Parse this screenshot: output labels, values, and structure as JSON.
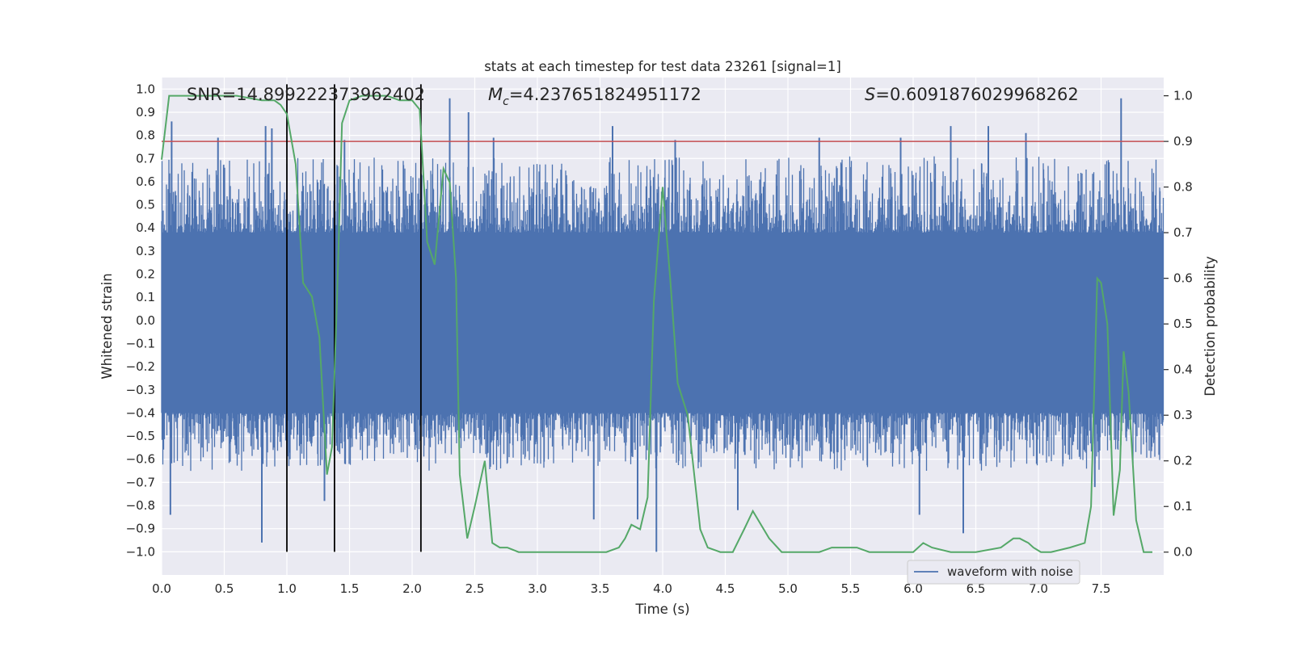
{
  "chart_data": {
    "type": "line",
    "title": "stats at each timestep for test data 23261 [signal=1]",
    "xlabel": "Time (s)",
    "ylabel": "Whitened strain",
    "ylabel_right": "Detection probability",
    "xlim": [
      0.0,
      8.0
    ],
    "ylim": [
      -1.1,
      1.05
    ],
    "ylim_right": [
      -0.05,
      1.04
    ],
    "x_ticks": [
      "0.0",
      "0.5",
      "1.0",
      "1.5",
      "2.0",
      "2.5",
      "3.0",
      "3.5",
      "4.0",
      "4.5",
      "5.0",
      "5.5",
      "6.0",
      "6.5",
      "7.0",
      "7.5"
    ],
    "y_ticks": [
      "1.0",
      "0.9",
      "0.8",
      "0.7",
      "0.6",
      "0.5",
      "0.4",
      "0.3",
      "0.2",
      "0.1",
      "0.0",
      "-0.1",
      "-0.2",
      "-0.3",
      "-0.4",
      "-0.5",
      "-0.6",
      "-0.7",
      "-0.8",
      "-0.9",
      "-1.0"
    ],
    "y_ticks_right": [
      "1.0",
      "0.9",
      "0.8",
      "0.7",
      "0.6",
      "0.5",
      "0.4",
      "0.3",
      "0.2",
      "0.1",
      "0.0"
    ],
    "annotations": {
      "snr": "SNR=14.899222373962402",
      "mc_symbol": "M",
      "mc_sub": "c",
      "mc_value": "=4.237651824951172",
      "s_symbol": "S",
      "s_value": "=0.6091876029968262"
    },
    "legend": {
      "label": "waveform with noise",
      "position": "lower-right"
    },
    "colors": {
      "waveform": "#4c72b0",
      "probability": "#55a868",
      "threshold": "#c44e52",
      "vlines": "#000000",
      "axes_bg": "#eaeaf2",
      "grid": "#ffffff"
    },
    "threshold_right": 0.9,
    "vlines_x": [
      1.0,
      1.38,
      2.07
    ],
    "waveform": {
      "name": "waveform with noise",
      "note": "whitened noisy strain, dense fill between approx -0.4 and 0.38 with spikes",
      "envelope_low": -0.4,
      "envelope_high": 0.38,
      "spikes": [
        {
          "x": 0.08,
          "y": 0.86
        },
        {
          "x": 0.45,
          "y": 0.79
        },
        {
          "x": 0.83,
          "y": 0.84
        },
        {
          "x": 0.88,
          "y": 0.83
        },
        {
          "x": 1.46,
          "y": 0.78
        },
        {
          "x": 2.3,
          "y": 0.96
        },
        {
          "x": 2.45,
          "y": 0.9
        },
        {
          "x": 2.65,
          "y": 0.79
        },
        {
          "x": 3.6,
          "y": 0.84
        },
        {
          "x": 4.1,
          "y": 0.78
        },
        {
          "x": 5.25,
          "y": 0.79
        },
        {
          "x": 5.9,
          "y": 0.79
        },
        {
          "x": 6.3,
          "y": 0.84
        },
        {
          "x": 6.6,
          "y": 0.84
        },
        {
          "x": 6.9,
          "y": 0.81
        },
        {
          "x": 7.66,
          "y": 0.96
        },
        {
          "x": 0.07,
          "y": -0.84
        },
        {
          "x": 0.8,
          "y": -0.96
        },
        {
          "x": 1.3,
          "y": -0.78
        },
        {
          "x": 3.45,
          "y": -0.86
        },
        {
          "x": 3.8,
          "y": -0.86
        },
        {
          "x": 3.95,
          "y": -1.0
        },
        {
          "x": 4.6,
          "y": -0.82
        },
        {
          "x": 6.4,
          "y": -0.92
        },
        {
          "x": 6.05,
          "y": -0.84
        },
        {
          "x": 7.45,
          "y": -0.72
        }
      ]
    },
    "probability": {
      "name": "detection probability",
      "x": [
        0.0,
        0.06,
        0.2,
        0.4,
        0.6,
        0.8,
        0.9,
        0.95,
        1.0,
        1.07,
        1.13,
        1.2,
        1.26,
        1.32,
        1.36,
        1.4,
        1.44,
        1.5,
        1.6,
        1.7,
        1.8,
        1.9,
        2.0,
        2.06,
        2.12,
        2.18,
        2.25,
        2.3,
        2.35,
        2.38,
        2.44,
        2.5,
        2.58,
        2.64,
        2.7,
        2.76,
        2.85,
        3.0,
        3.2,
        3.4,
        3.55,
        3.65,
        3.7,
        3.75,
        3.82,
        3.88,
        3.93,
        4.0,
        4.06,
        4.12,
        4.2,
        4.28,
        4.3,
        4.36,
        4.46,
        4.56,
        4.65,
        4.72,
        4.85,
        4.95,
        5.05,
        5.25,
        5.35,
        5.45,
        5.55,
        5.65,
        5.75,
        6.0,
        6.08,
        6.15,
        6.3,
        6.5,
        6.7,
        6.8,
        6.85,
        6.92,
        6.96,
        7.02,
        7.1,
        7.25,
        7.37,
        7.42,
        7.47,
        7.5,
        7.55,
        7.6,
        7.65,
        7.68,
        7.72,
        7.78,
        7.84,
        7.91
      ],
      "y": [
        0.86,
        1.0,
        1.0,
        1.0,
        1.0,
        0.99,
        0.99,
        0.98,
        0.96,
        0.85,
        0.59,
        0.56,
        0.47,
        0.17,
        0.23,
        0.55,
        0.94,
        0.99,
        1.0,
        1.0,
        1.0,
        0.99,
        0.99,
        0.97,
        0.68,
        0.63,
        0.84,
        0.81,
        0.6,
        0.17,
        0.03,
        0.1,
        0.2,
        0.02,
        0.01,
        0.01,
        0.0,
        0.0,
        0.0,
        0.0,
        0.0,
        0.01,
        0.03,
        0.06,
        0.05,
        0.12,
        0.55,
        0.8,
        0.6,
        0.37,
        0.3,
        0.1,
        0.05,
        0.01,
        0.0,
        0.0,
        0.05,
        0.09,
        0.03,
        0.0,
        0.0,
        0.0,
        0.01,
        0.01,
        0.01,
        0.0,
        0.0,
        0.0,
        0.02,
        0.01,
        0.0,
        0.0,
        0.01,
        0.03,
        0.03,
        0.02,
        0.01,
        0.0,
        0.0,
        0.01,
        0.02,
        0.1,
        0.6,
        0.59,
        0.5,
        0.08,
        0.18,
        0.44,
        0.35,
        0.07,
        0.0,
        0.0
      ]
    }
  }
}
